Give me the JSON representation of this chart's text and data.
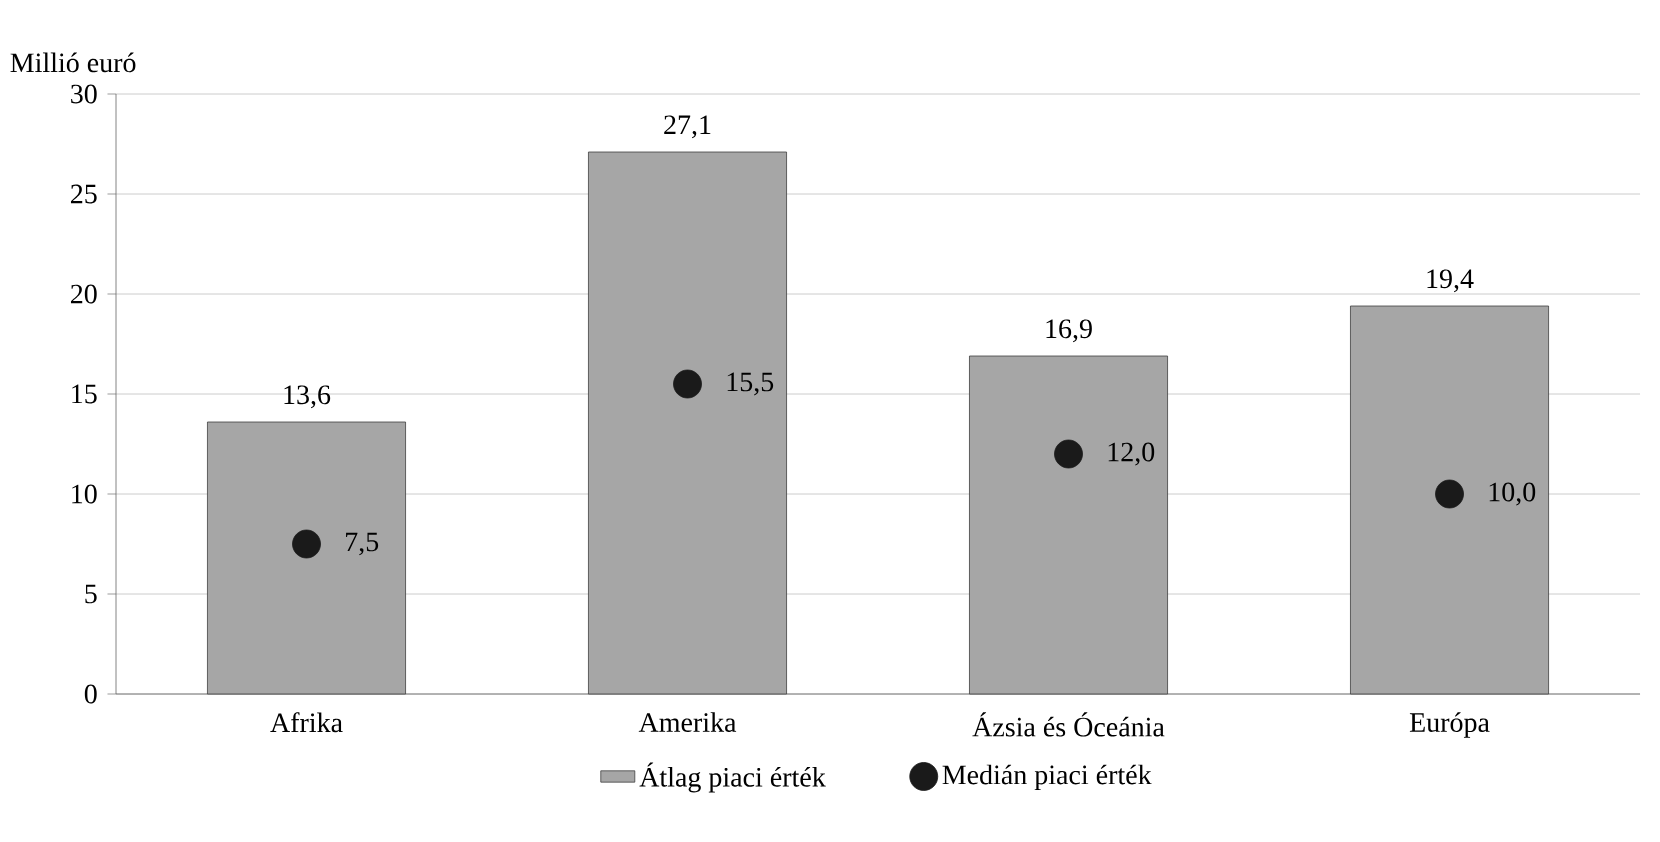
{
  "chart_data": {
    "type": "bar",
    "ylabel": "Millió euró",
    "categories": [
      "Afrika",
      "Amerika",
      "Ázsia és Óceánia",
      "Európa"
    ],
    "series": [
      {
        "name": "Átlag piaci érték",
        "color": "#a6a6a6",
        "values": [
          13.6,
          27.1,
          16.9,
          19.4
        ],
        "value_labels": [
          "13,6",
          "27,1",
          "16,9",
          "19,4"
        ]
      },
      {
        "name": "Medián piaci érték",
        "type": "scatter",
        "color": "#1a1a1a",
        "values": [
          7.5,
          15.5,
          12.0,
          10.0
        ],
        "value_labels": [
          "7,5",
          "15,5",
          "12,0",
          "10,0"
        ]
      }
    ],
    "ylim": [
      0,
      30
    ],
    "yticks": [
      0,
      5,
      10,
      15,
      20,
      25,
      30
    ],
    "grid": "y",
    "legend": "bottom",
    "marker": "circle"
  }
}
